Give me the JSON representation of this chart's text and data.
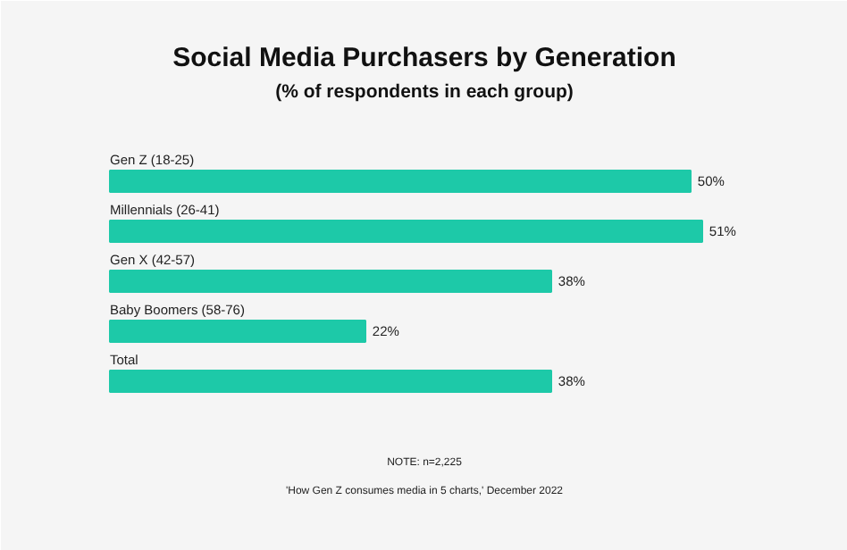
{
  "chart_data": {
    "type": "bar",
    "orientation": "horizontal",
    "title": "Social Media Purchasers by Generation",
    "subtitle": "(% of respondents in each group)",
    "categories": [
      "Gen Z (18-25)",
      "Millennials (26-41)",
      "Gen X (42-57)",
      "Baby Boomers (58-76)",
      "Total"
    ],
    "values": [
      50,
      51,
      38,
      22,
      38
    ],
    "value_labels": [
      "50%",
      "51%",
      "38%",
      "22%",
      "38%"
    ],
    "color": "#1dc9a8",
    "annotations": [
      "NOTE: n=2,225",
      "'How Gen Z consumes media in 5 charts,' December 2022"
    ]
  }
}
